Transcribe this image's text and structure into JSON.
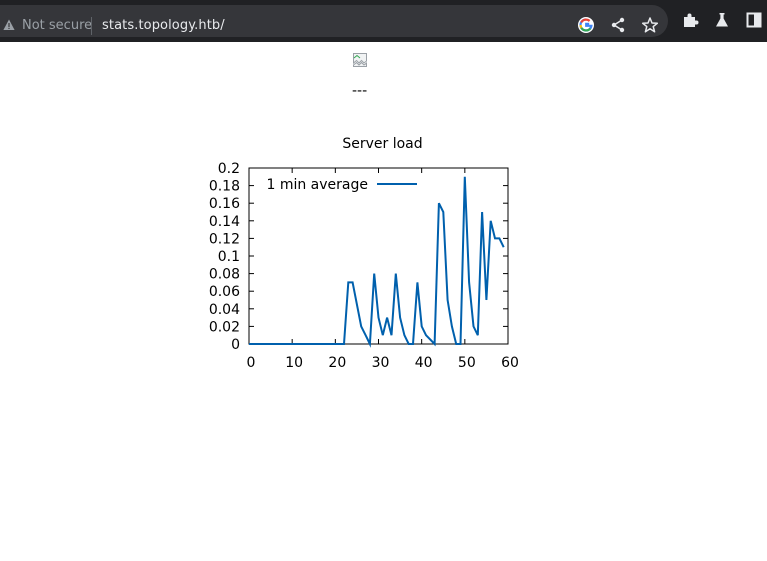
{
  "browser": {
    "security_label": "Not secure",
    "url": "stats.topology.htb/",
    "icons": [
      "warning-icon",
      "google-icon",
      "share-icon",
      "bookmark-star-icon",
      "extensions-puzzle-icon",
      "labs-flask-icon",
      "sidebar-icon"
    ]
  },
  "page": {
    "image_alt": "",
    "separator_text": "---"
  },
  "chart_data": {
    "type": "line",
    "title": "Server load",
    "xlabel": "",
    "ylabel": "",
    "xlim": [
      0,
      60
    ],
    "ylim": [
      0,
      0.2
    ],
    "xticks": [
      "0",
      "10",
      "20",
      "30",
      "40",
      "50",
      "60"
    ],
    "yticks": [
      "0",
      "0.02",
      "0.04",
      "0.06",
      "0.08",
      "0.1",
      "0.12",
      "0.14",
      "0.16",
      "0.18",
      "0.2"
    ],
    "legend_position": "top-left",
    "color": "#0060ad",
    "series": [
      {
        "name": "1 min average",
        "x": [
          0,
          20,
          21,
          22,
          23,
          24,
          26,
          27,
          28,
          29,
          30,
          31,
          32,
          33,
          34,
          35,
          36,
          37,
          38,
          39,
          40,
          41,
          43,
          44,
          45,
          46,
          47,
          48,
          49,
          50,
          51,
          52,
          53,
          54,
          55,
          56,
          57,
          58,
          59
        ],
        "values": [
          0,
          0,
          0,
          0,
          0.07,
          0.07,
          0.02,
          0.01,
          0,
          0.08,
          0.03,
          0.01,
          0.03,
          0.01,
          0.08,
          0.03,
          0.01,
          0,
          0,
          0.07,
          0.02,
          0.01,
          0,
          0.16,
          0.15,
          0.05,
          0.02,
          0,
          0,
          0.19,
          0.07,
          0.02,
          0.01,
          0.15,
          0.05,
          0.14,
          0.12,
          0.12,
          0.11
        ]
      }
    ]
  }
}
